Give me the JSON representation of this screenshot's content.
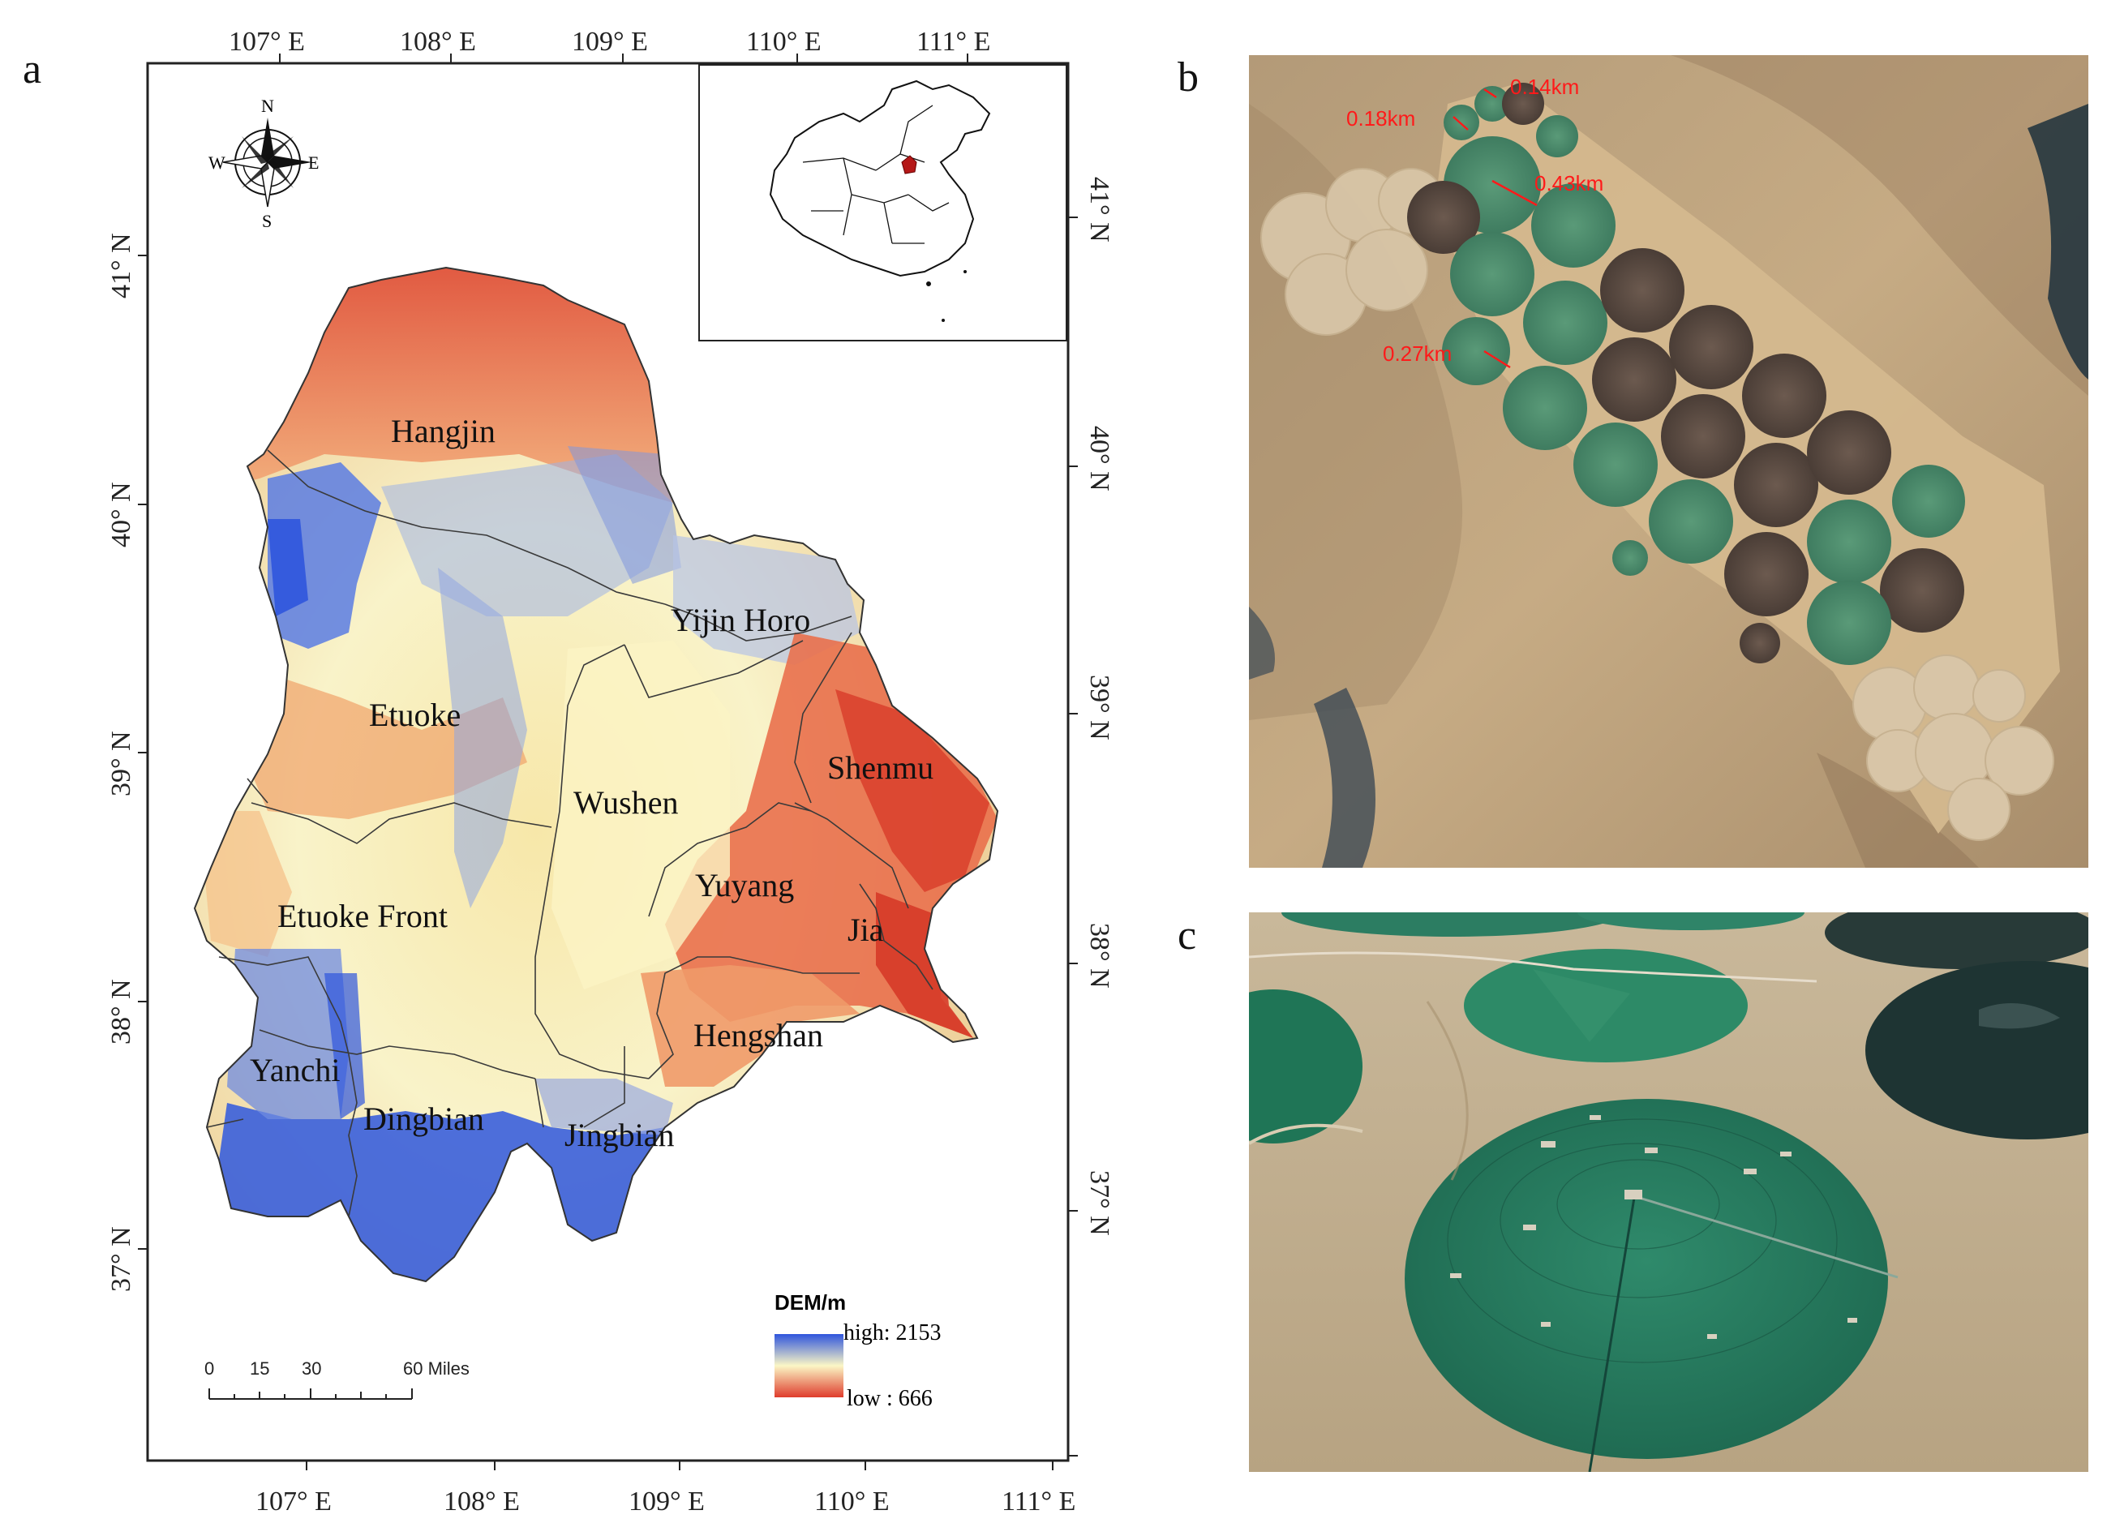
{
  "panels": {
    "a": "a",
    "b": "b",
    "c": "c"
  },
  "map": {
    "top_lon_labels": [
      "107° E",
      "108° E",
      "109° E",
      "110° E",
      "111° E"
    ],
    "bottom_lon_labels": [
      "107° E",
      "108° E",
      "109° E",
      "110° E",
      "111° E"
    ],
    "left_lat_labels": [
      "41° N",
      "40° N",
      "39° N",
      "38° N",
      "37° N"
    ],
    "right_lat_labels": [
      "41° N",
      "40° N",
      "39° N",
      "38° N",
      "37° N"
    ],
    "compass": {
      "n": "N",
      "s": "S",
      "e": "E",
      "w": "W"
    },
    "regions": {
      "hangjin": "Hangjin",
      "yijin_horo": "Yijin Horo",
      "etuoke": "Etuoke",
      "shenmu": "Shenmu",
      "wushen": "Wushen",
      "etuoke_front": "Etuoke Front",
      "yuyang": "Yuyang",
      "jia": "Jia",
      "hengshan": "Hengshan",
      "yanchi": "Yanchi",
      "dingbian": "Dingbian",
      "jingbian": "Jingbian"
    },
    "legend": {
      "title": "DEM/m",
      "high": "high: 2153",
      "low": "low : 666",
      "high_color": "#2f55dd",
      "mid_color": "#fbf7c6",
      "low_color": "#df3c2c"
    },
    "scalebar": {
      "ticks": [
        "0",
        "15",
        "30",
        "60 Miles"
      ]
    }
  },
  "satellite_b": {
    "labels": [
      "0.14km",
      "0.18km",
      "0.43km",
      "0.27km"
    ],
    "label_color": "#ff1a1a"
  }
}
